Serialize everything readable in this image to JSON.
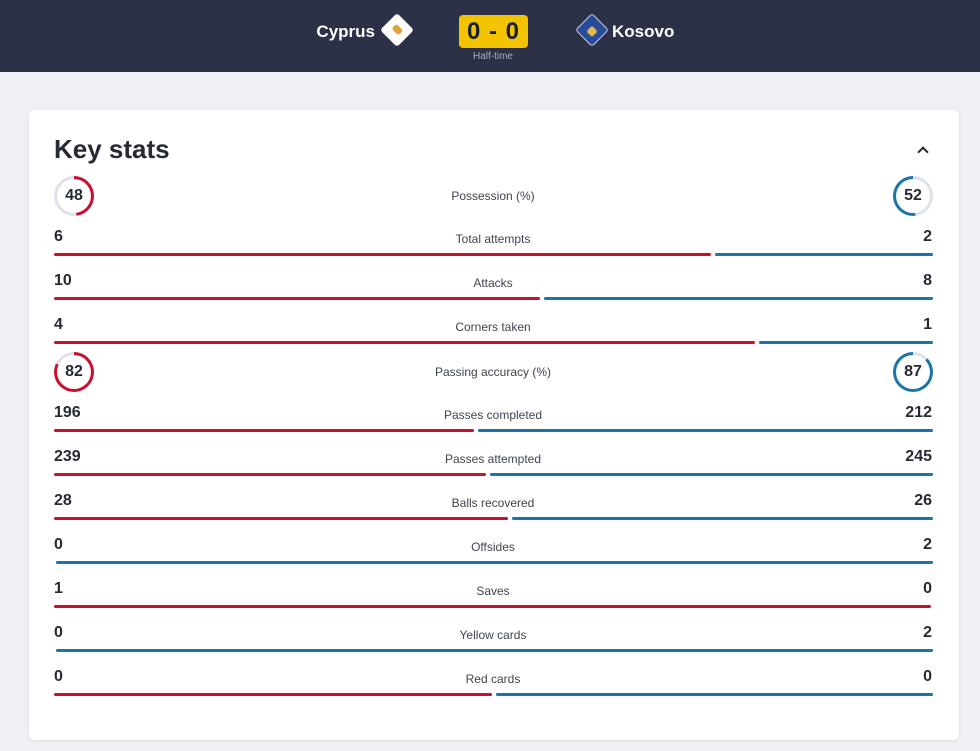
{
  "match": {
    "home_team": "Cyprus",
    "away_team": "Kosovo",
    "score": "0 - 0",
    "status": "Half-time",
    "home_flag_icon": "cyprus-flag-icon",
    "away_flag_icon": "kosovo-flag-icon"
  },
  "stats_panel": {
    "title": "Key stats",
    "collapse_icon": "chevron-up-icon"
  },
  "colors": {
    "home": "#c8102e",
    "away": "#1a75a8",
    "ring_track": "#dfe2ea"
  },
  "stats": [
    {
      "label": "Possession (%)",
      "home": "48",
      "away": "52",
      "type": "ring"
    },
    {
      "label": "Total attempts",
      "home": "6",
      "away": "2",
      "type": "bar"
    },
    {
      "label": "Attacks",
      "home": "10",
      "away": "8",
      "type": "bar"
    },
    {
      "label": "Corners taken",
      "home": "4",
      "away": "1",
      "type": "bar"
    },
    {
      "label": "Passing accuracy (%)",
      "home": "82",
      "away": "87",
      "type": "ring"
    },
    {
      "label": "Passes completed",
      "home": "196",
      "away": "212",
      "type": "bar"
    },
    {
      "label": "Passes attempted",
      "home": "239",
      "away": "245",
      "type": "bar"
    },
    {
      "label": "Balls recovered",
      "home": "28",
      "away": "26",
      "type": "bar"
    },
    {
      "label": "Offsides",
      "home": "0",
      "away": "2",
      "type": "bar"
    },
    {
      "label": "Saves",
      "home": "1",
      "away": "0",
      "type": "bar"
    },
    {
      "label": "Yellow cards",
      "home": "0",
      "away": "2",
      "type": "bar"
    },
    {
      "label": "Red cards",
      "home": "0",
      "away": "0",
      "type": "bar"
    }
  ]
}
